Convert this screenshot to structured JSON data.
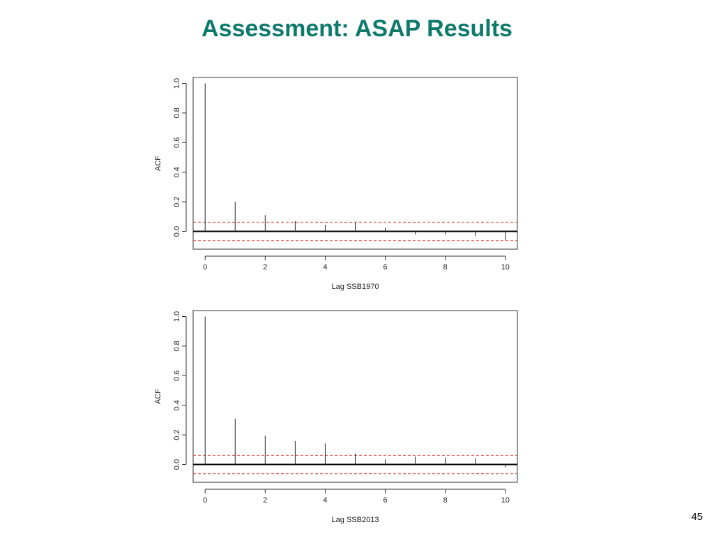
{
  "slide": {
    "title": "Assessment: ASAP Results",
    "page_number": "45"
  },
  "chart_data": [
    {
      "type": "bar",
      "xlabel": "Lag SSB1970",
      "ylabel": "ACF",
      "x": [
        0,
        1,
        2,
        3,
        4,
        5,
        6,
        7,
        8,
        9,
        10
      ],
      "values": [
        1.0,
        0.2,
        0.11,
        0.07,
        0.045,
        0.06,
        0.025,
        -0.02,
        -0.02,
        -0.03,
        -0.06
      ],
      "confidence_bound": 0.062,
      "xlim": [
        -0.4,
        10.4
      ],
      "ylim": [
        -0.12,
        1.04
      ],
      "xticks": [
        0,
        2,
        4,
        6,
        8,
        10
      ],
      "yticks": [
        0.0,
        0.2,
        0.4,
        0.6,
        0.8,
        1.0
      ],
      "bound_color": "#e8413c"
    },
    {
      "type": "bar",
      "xlabel": "Lag SSB2013",
      "ylabel": "ACF",
      "x": [
        0,
        1,
        2,
        3,
        4,
        5,
        6,
        7,
        8,
        9,
        10
      ],
      "values": [
        1.0,
        0.31,
        0.195,
        0.158,
        0.142,
        0.073,
        0.035,
        0.053,
        0.047,
        0.043,
        -0.02
      ],
      "confidence_bound": 0.062,
      "xlim": [
        -0.4,
        10.4
      ],
      "ylim": [
        -0.12,
        1.04
      ],
      "xticks": [
        0,
        2,
        4,
        6,
        8,
        10
      ],
      "yticks": [
        0.0,
        0.2,
        0.4,
        0.6,
        0.8,
        1.0
      ],
      "bound_color": "#e8413c"
    }
  ]
}
